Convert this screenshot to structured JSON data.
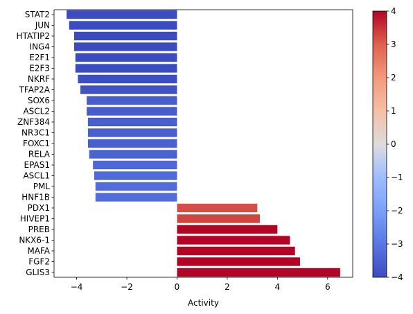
{
  "chart_data": {
    "type": "bar",
    "orientation": "horizontal",
    "categories": [
      "STAT2",
      "JUN",
      "HTATIP2",
      "ING4",
      "E2F1",
      "E2F3",
      "NKRF",
      "TFAP2A",
      "SOX6",
      "ASCL2",
      "ZNF384",
      "NR3C1",
      "FOXC1",
      "RELA",
      "EPAS1",
      "ASCL1",
      "PML",
      "HNF1B",
      "PDX1",
      "HIVEP1",
      "PREB",
      "NKX6-1",
      "MAFA",
      "FGF2",
      "GLIS3"
    ],
    "values": [
      -4.4,
      -4.3,
      -4.1,
      -4.1,
      -4.05,
      -4.05,
      -3.95,
      -3.85,
      -3.6,
      -3.6,
      -3.55,
      -3.55,
      -3.55,
      -3.5,
      -3.35,
      -3.3,
      -3.25,
      -3.25,
      3.2,
      3.3,
      4.0,
      4.5,
      4.7,
      4.9,
      6.5
    ],
    "title": "",
    "xlabel": "Activity",
    "ylabel": "",
    "xlim": [
      -4.9,
      7.0
    ],
    "xticks": [
      -4,
      -2,
      0,
      2,
      4,
      6
    ],
    "xtick_labels": [
      "−4",
      "−2",
      "0",
      "2",
      "4",
      "6"
    ],
    "grid": false,
    "colormap": "coolwarm",
    "colorbar": {
      "vmin": -4,
      "vmax": 4,
      "ticks": [
        4,
        3,
        2,
        1,
        0,
        -1,
        -2,
        -3,
        -4
      ],
      "tick_labels": [
        "4",
        "3",
        "2",
        "1",
        "0",
        "−1",
        "−2",
        "−3",
        "−4"
      ]
    }
  }
}
